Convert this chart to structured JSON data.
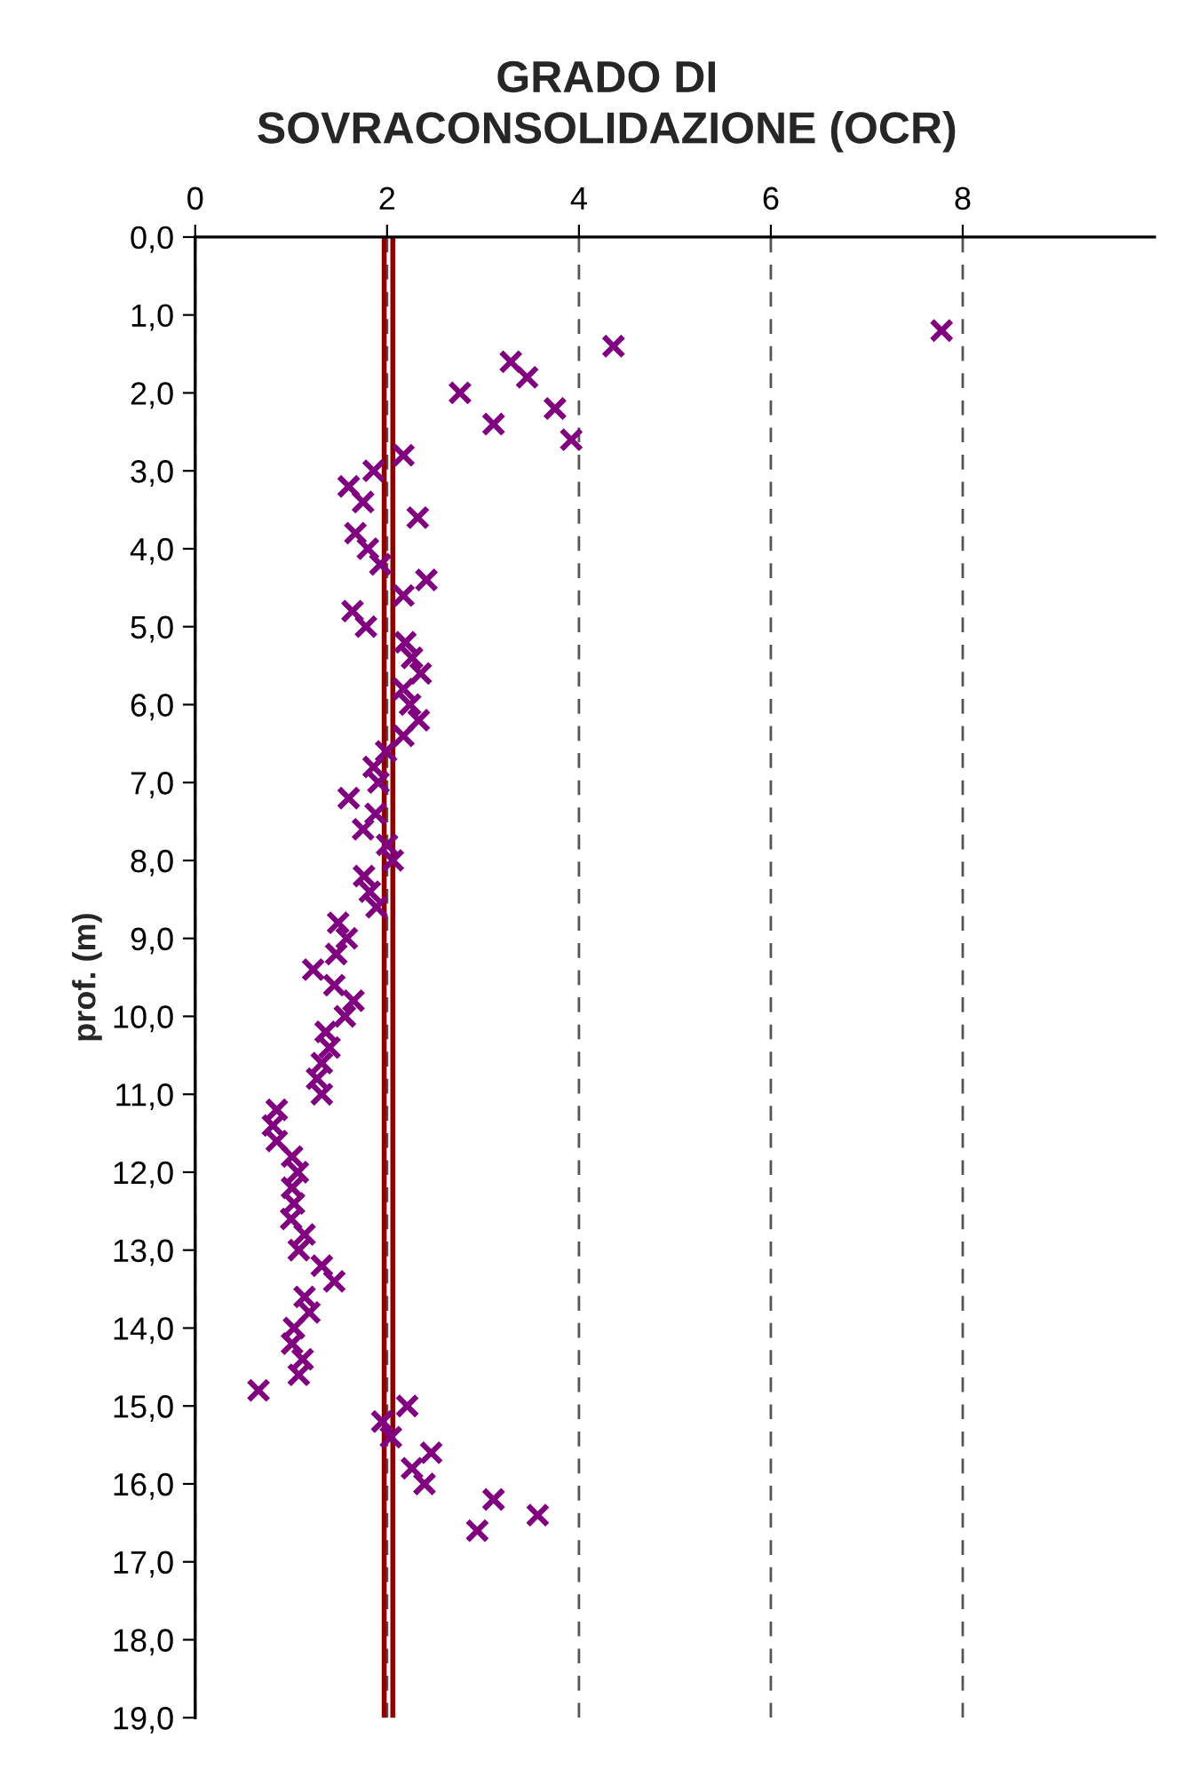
{
  "chart_data": {
    "type": "scatter",
    "title": "GRADO DI\nSOVRACONSOLIDAZIONE (OCR)",
    "ylabel": "prof. (m)",
    "series": [
      {
        "color": "#800080",
        "marker": "cross",
        "x": [
          7.78,
          4.36,
          3.29,
          3.46,
          2.76,
          3.75,
          3.11,
          3.92,
          2.17,
          1.86,
          1.6,
          1.75,
          2.32,
          1.67,
          1.8,
          1.93,
          2.41,
          2.17,
          1.64,
          1.78,
          2.19,
          2.26,
          2.35,
          2.17,
          2.24,
          2.33,
          2.17,
          1.99,
          1.86,
          1.91,
          1.6,
          1.88,
          1.75,
          2.0,
          2.06,
          1.76,
          1.82,
          1.89,
          1.49,
          1.58,
          1.47,
          1.23,
          1.45,
          1.65,
          1.56,
          1.36,
          1.4,
          1.32,
          1.27,
          1.32,
          0.85,
          0.81,
          0.85,
          1.01,
          1.07,
          1.01,
          1.03,
          1.0,
          1.14,
          1.08,
          1.32,
          1.45,
          1.14,
          1.19,
          1.03,
          1.01,
          1.12,
          1.08,
          0.66,
          2.21,
          1.95,
          2.04,
          2.46,
          2.26,
          2.39,
          3.11,
          3.57,
          2.94
        ],
        "values": [
          1.2,
          1.4,
          1.6,
          1.8,
          2.0,
          2.2,
          2.4,
          2.6,
          2.8,
          3.0,
          3.2,
          3.4,
          3.6,
          3.8,
          4.0,
          4.2,
          4.4,
          4.6,
          4.8,
          5.0,
          5.2,
          5.4,
          5.6,
          5.8,
          6.0,
          6.2,
          6.4,
          6.6,
          6.8,
          7.0,
          7.2,
          7.4,
          7.6,
          7.8,
          8.0,
          8.2,
          8.4,
          8.6,
          8.8,
          9.0,
          9.2,
          9.4,
          9.6,
          9.8,
          10.0,
          10.2,
          10.4,
          10.6,
          10.8,
          11.0,
          11.2,
          11.4,
          11.6,
          11.8,
          12.0,
          12.2,
          12.4,
          12.6,
          12.8,
          13.0,
          13.2,
          13.4,
          13.6,
          13.8,
          14.0,
          14.2,
          14.4,
          14.6,
          14.8,
          15.0,
          15.2,
          15.4,
          15.6,
          15.8,
          16.0,
          16.2,
          16.4,
          16.6
        ]
      }
    ],
    "xlim": [
      0,
      10
    ],
    "xticks": [
      0,
      2,
      4,
      6,
      8
    ],
    "ylim": [
      19,
      0
    ],
    "yticks": [
      {
        "value": 0,
        "label": "0,0"
      },
      {
        "value": 1,
        "label": "1,0"
      },
      {
        "value": 2,
        "label": "2,0"
      },
      {
        "value": 3,
        "label": "3,0"
      },
      {
        "value": 4,
        "label": "4,0"
      },
      {
        "value": 5,
        "label": "5,0"
      },
      {
        "value": 6,
        "label": "6,0"
      },
      {
        "value": 7,
        "label": "7,0"
      },
      {
        "value": 8,
        "label": "8,0"
      },
      {
        "value": 9,
        "label": "9,0"
      },
      {
        "value": 10,
        "label": "10,0"
      },
      {
        "value": 11,
        "label": "11,0"
      },
      {
        "value": 12,
        "label": "12,0"
      },
      {
        "value": 13,
        "label": "13,0"
      },
      {
        "value": 14,
        "label": "14,0"
      },
      {
        "value": 15,
        "label": "15,0"
      },
      {
        "value": 16,
        "label": "16,0"
      },
      {
        "value": 17,
        "label": "17,0"
      },
      {
        "value": 18,
        "label": "18,0"
      },
      {
        "value": 19,
        "label": "19,0"
      }
    ],
    "grid": "x",
    "ref_lines": [
      {
        "axis": "x",
        "value": 1.97,
        "color": "#8b0000",
        "line_style": "solid"
      },
      {
        "axis": "x",
        "value": 2.06,
        "color": "#8b0000",
        "line_style": "solid"
      }
    ]
  }
}
